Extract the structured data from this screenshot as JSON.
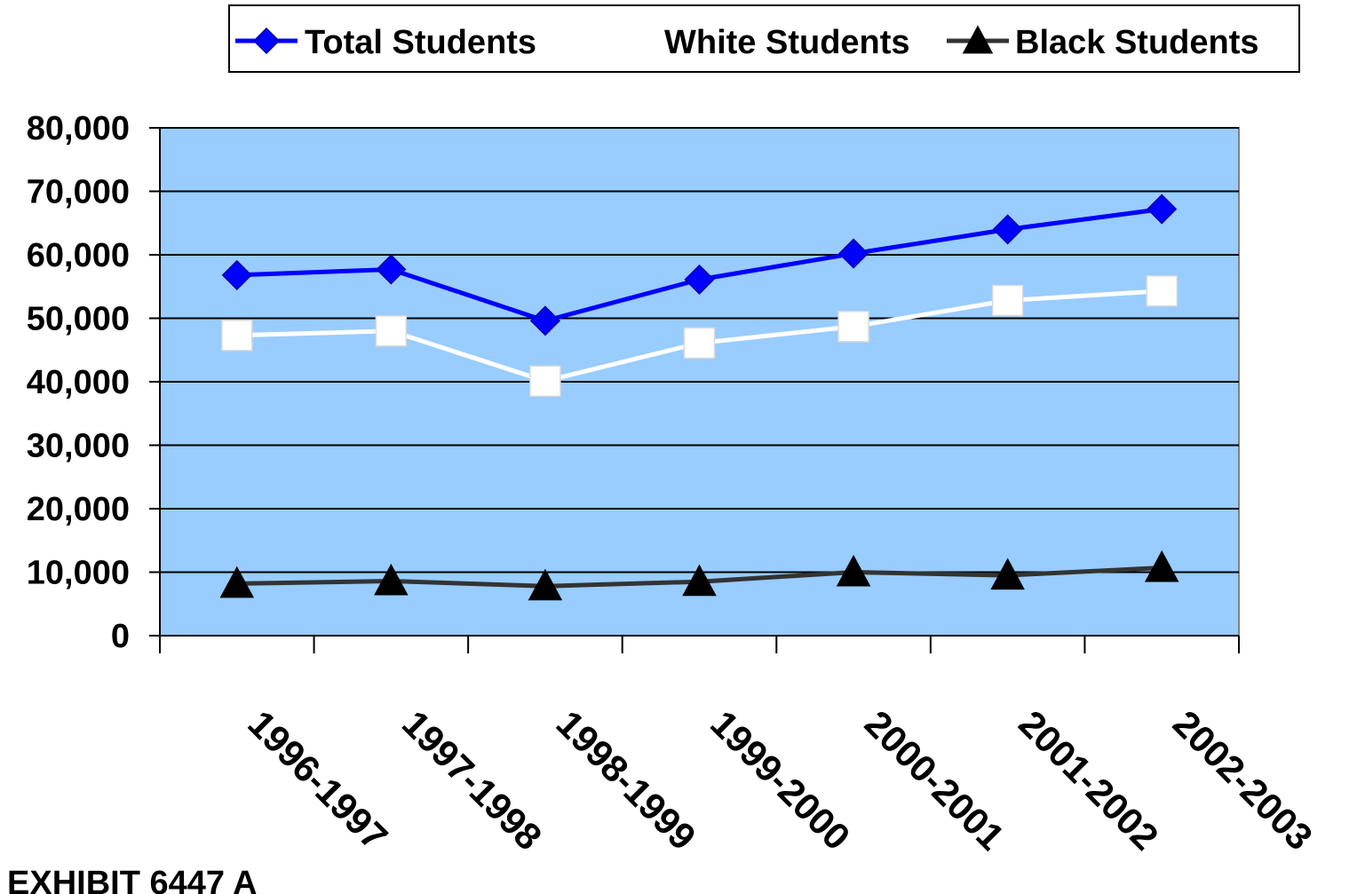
{
  "chart_data": {
    "type": "line",
    "categories": [
      "1996-1997",
      "1997-1998",
      "1998-1999",
      "1999-2000",
      "2000-2001",
      "2001-2002",
      "2002-2003"
    ],
    "series": [
      {
        "name": "Total Students",
        "values": [
          56800,
          57700,
          49600,
          56100,
          60200,
          64000,
          67200
        ],
        "color": "#0000ff",
        "marker": "diamond"
      },
      {
        "name": "White Students",
        "values": [
          47300,
          48000,
          40100,
          46100,
          48700,
          52800,
          54300
        ],
        "color": "#ffffff",
        "marker": "square"
      },
      {
        "name": "Black Students",
        "values": [
          8200,
          8600,
          7800,
          8500,
          10000,
          9500,
          10700
        ],
        "color": "#333333",
        "marker": "triangle"
      }
    ],
    "ylim": [
      0,
      80000
    ],
    "yticks": [
      "0",
      "10,000",
      "20,000",
      "30,000",
      "40,000",
      "50,000",
      "60,000",
      "70,000",
      "80,000"
    ],
    "grid": true,
    "legend_position": "top",
    "plot_background": "#99ccff"
  },
  "footer": {
    "exhibit": "EXHIBIT 6447 A"
  }
}
